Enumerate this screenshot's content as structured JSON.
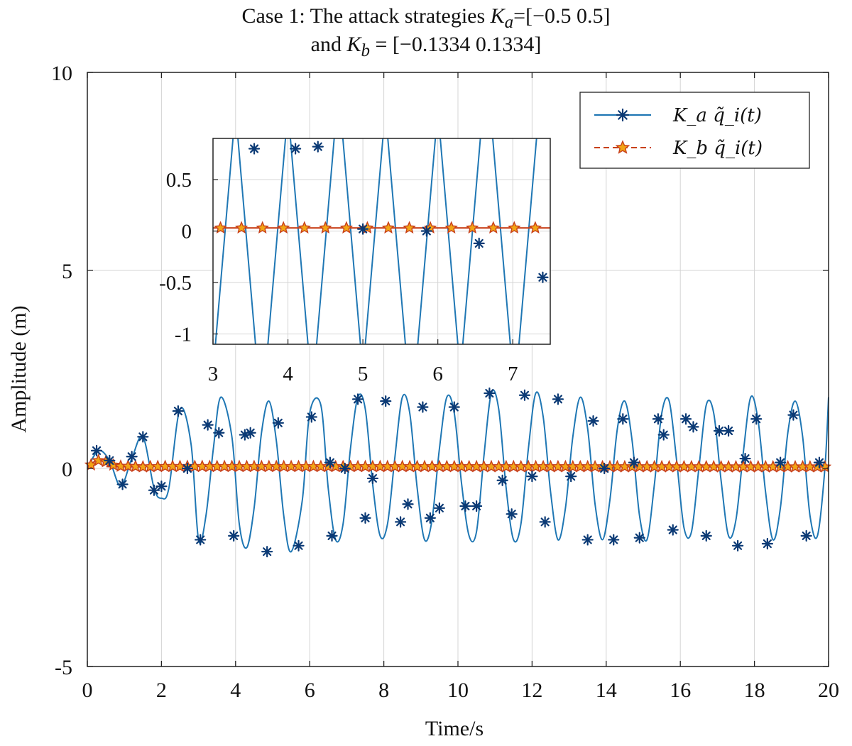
{
  "chart_data": {
    "type": "line",
    "title": {
      "line1_prefix": "Case 1: The attack strategies ",
      "ka_symbol": "K",
      "ka_sub": "a",
      "ka_value": "=[−0.5 0.5]",
      "line2_prefix": "and ",
      "kb_symbol": "K",
      "kb_sub": "b",
      "kb_value": " = [−0.1334 0.1334]"
    },
    "xlabel": "Time/s",
    "ylabel": "Amplitude (m)",
    "xlim": [
      0,
      20
    ],
    "ylim": [
      -5,
      10
    ],
    "xticks": [
      "0",
      "2",
      "4",
      "6",
      "8",
      "10",
      "12",
      "14",
      "16",
      "18",
      "20"
    ],
    "yticks": [
      "-5",
      "0",
      "5",
      "10"
    ],
    "grid": true,
    "legend_position": "top-right",
    "colors": {
      "ka": "#1f77b4",
      "ka_marker": "#0b3a75",
      "kb": "#c8401a",
      "kb_marker": "#f2a516"
    },
    "series": [
      {
        "name": "K_a q~_i(t)",
        "legend_label": "K_a q̃_i(t)",
        "marker": "asterisk",
        "samples": [
          [
            0.0,
            0.0
          ],
          [
            0.3,
            0.45
          ],
          [
            0.6,
            0.2
          ],
          [
            0.9,
            -0.45
          ],
          [
            1.2,
            0.25
          ],
          [
            1.5,
            0.8
          ],
          [
            1.8,
            -0.5
          ],
          [
            2.0,
            -0.75
          ],
          [
            2.2,
            -0.5
          ],
          [
            2.5,
            1.5
          ],
          [
            2.8,
            0.6
          ],
          [
            3.0,
            -1.8
          ],
          [
            3.2,
            -1.2
          ],
          [
            3.4,
            0.5
          ],
          [
            3.6,
            1.8
          ],
          [
            3.9,
            0.8
          ],
          [
            4.1,
            -1.4
          ],
          [
            4.3,
            -2.0
          ],
          [
            4.5,
            -1.0
          ],
          [
            4.7,
            0.9
          ],
          [
            4.9,
            1.7
          ],
          [
            5.1,
            0.7
          ],
          [
            5.3,
            -1.2
          ],
          [
            5.5,
            -2.1
          ],
          [
            5.8,
            -0.8
          ],
          [
            6.0,
            1.4
          ],
          [
            6.3,
            1.6
          ],
          [
            6.5,
            -0.5
          ],
          [
            6.7,
            -1.8
          ],
          [
            6.9,
            -1.4
          ],
          [
            7.1,
            0.5
          ],
          [
            7.3,
            1.8
          ],
          [
            7.5,
            1.5
          ],
          [
            7.7,
            -0.4
          ],
          [
            7.9,
            -1.7
          ],
          [
            8.1,
            -1.4
          ],
          [
            8.3,
            0.3
          ],
          [
            8.5,
            1.8
          ],
          [
            8.7,
            1.4
          ],
          [
            8.9,
            -0.5
          ],
          [
            9.1,
            -1.8
          ],
          [
            9.3,
            -1.3
          ],
          [
            9.5,
            0.5
          ],
          [
            9.7,
            1.8
          ],
          [
            9.9,
            1.4
          ],
          [
            10.1,
            -0.4
          ],
          [
            10.3,
            -1.7
          ],
          [
            10.5,
            -1.6
          ],
          [
            10.7,
            0.3
          ],
          [
            10.9,
            1.9
          ],
          [
            11.1,
            1.5
          ],
          [
            11.3,
            -0.5
          ],
          [
            11.5,
            -1.8
          ],
          [
            11.7,
            -1.4
          ],
          [
            11.9,
            0.5
          ],
          [
            12.1,
            1.9
          ],
          [
            12.3,
            1.3
          ],
          [
            12.5,
            -0.6
          ],
          [
            12.7,
            -1.8
          ],
          [
            12.9,
            -1.0
          ],
          [
            13.1,
            0.8
          ],
          [
            13.3,
            1.8
          ],
          [
            13.5,
            1.0
          ],
          [
            13.7,
            -0.9
          ],
          [
            13.9,
            -1.8
          ],
          [
            14.1,
            -0.8
          ],
          [
            14.3,
            1.0
          ],
          [
            14.5,
            1.7
          ],
          [
            14.7,
            0.7
          ],
          [
            14.9,
            -1.2
          ],
          [
            15.1,
            -1.8
          ],
          [
            15.3,
            -0.4
          ],
          [
            15.5,
            1.4
          ],
          [
            15.7,
            1.7
          ],
          [
            15.9,
            0.2
          ],
          [
            16.1,
            -1.5
          ],
          [
            16.3,
            -1.6
          ],
          [
            16.5,
            0.0
          ],
          [
            16.7,
            1.6
          ],
          [
            16.9,
            1.4
          ],
          [
            17.1,
            -0.3
          ],
          [
            17.3,
            -1.7
          ],
          [
            17.5,
            -1.3
          ],
          [
            17.7,
            0.4
          ],
          [
            17.9,
            1.8
          ],
          [
            18.1,
            1.2
          ],
          [
            18.3,
            -0.6
          ],
          [
            18.5,
            -1.8
          ],
          [
            18.7,
            -1.0
          ],
          [
            18.9,
            0.9
          ],
          [
            19.1,
            1.7
          ],
          [
            19.3,
            0.8
          ],
          [
            19.5,
            -1.2
          ],
          [
            19.7,
            -1.7
          ],
          [
            19.9,
            0.0
          ],
          [
            20.0,
            1.8
          ]
        ],
        "markers": [
          [
            0.25,
            0.45
          ],
          [
            0.6,
            0.2
          ],
          [
            0.95,
            -0.4
          ],
          [
            1.2,
            0.3
          ],
          [
            1.5,
            0.8
          ],
          [
            1.8,
            -0.55
          ],
          [
            2.0,
            -0.45
          ],
          [
            2.45,
            1.45
          ],
          [
            2.7,
            0.0
          ],
          [
            3.05,
            -1.8
          ],
          [
            3.25,
            1.1
          ],
          [
            3.55,
            0.9
          ],
          [
            3.95,
            -1.7
          ],
          [
            4.25,
            0.85
          ],
          [
            4.4,
            0.9
          ],
          [
            4.85,
            -2.1
          ],
          [
            5.15,
            1.15
          ],
          [
            5.7,
            -1.95
          ],
          [
            6.05,
            1.3
          ],
          [
            6.55,
            0.15
          ],
          [
            6.6,
            -1.7
          ],
          [
            6.95,
            0.0
          ],
          [
            7.3,
            1.75
          ],
          [
            7.5,
            -1.25
          ],
          [
            7.7,
            -0.25
          ],
          [
            8.05,
            1.7
          ],
          [
            8.45,
            -1.35
          ],
          [
            8.65,
            -0.9
          ],
          [
            9.05,
            1.55
          ],
          [
            9.25,
            -1.25
          ],
          [
            9.5,
            -1.0
          ],
          [
            9.9,
            1.55
          ],
          [
            10.2,
            -0.95
          ],
          [
            10.5,
            -0.95
          ],
          [
            10.85,
            1.9
          ],
          [
            11.2,
            -0.3
          ],
          [
            11.45,
            -1.15
          ],
          [
            11.8,
            1.85
          ],
          [
            12.0,
            -0.2
          ],
          [
            12.35,
            -1.35
          ],
          [
            12.7,
            1.75
          ],
          [
            13.05,
            -0.2
          ],
          [
            13.5,
            -1.8
          ],
          [
            13.65,
            1.2
          ],
          [
            13.95,
            0.0
          ],
          [
            14.2,
            -1.8
          ],
          [
            14.45,
            1.25
          ],
          [
            14.75,
            0.15
          ],
          [
            14.9,
            -1.75
          ],
          [
            15.4,
            1.25
          ],
          [
            15.55,
            0.85
          ],
          [
            15.8,
            -1.55
          ],
          [
            16.15,
            1.25
          ],
          [
            16.35,
            1.05
          ],
          [
            16.7,
            -1.7
          ],
          [
            17.05,
            0.95
          ],
          [
            17.3,
            0.95
          ],
          [
            17.55,
            -1.95
          ],
          [
            17.75,
            0.25
          ],
          [
            18.05,
            1.25
          ],
          [
            18.35,
            -1.9
          ],
          [
            18.7,
            0.15
          ],
          [
            19.05,
            1.35
          ],
          [
            19.4,
            -1.7
          ],
          [
            19.75,
            0.15
          ]
        ]
      },
      {
        "name": "K_b q~_i(t)",
        "legend_label": "K_b q̃_i(t)",
        "marker": "pentagram",
        "samples": [
          [
            0.0,
            0.0
          ],
          [
            0.2,
            0.18
          ],
          [
            0.4,
            0.22
          ],
          [
            0.6,
            0.12
          ],
          [
            0.8,
            0.05
          ],
          [
            1.0,
            0.06
          ],
          [
            1.5,
            0.04
          ],
          [
            2.0,
            0.05
          ],
          [
            20.0,
            0.04
          ]
        ],
        "marker_spacing": 0.2
      }
    ],
    "inset": {
      "xlim": [
        3,
        7.5
      ],
      "ylim": [
        -1.1,
        0.9
      ],
      "xticks": [
        "3",
        "4",
        "5",
        "6",
        "7"
      ],
      "yticks": [
        "0.5",
        "0",
        "-0.5",
        "-1"
      ],
      "ka_zero_crossings": [
        3.15,
        3.45,
        3.85,
        4.15,
        4.5,
        4.85,
        5.15,
        5.45,
        5.85,
        6.15,
        6.45,
        6.85,
        7.2
      ],
      "ka_markers": [
        [
          3.55,
          0.8
        ],
        [
          4.1,
          0.8
        ],
        [
          4.4,
          0.82
        ],
        [
          5.0,
          0.02
        ],
        [
          5.85,
          0.0
        ],
        [
          6.55,
          -0.12
        ],
        [
          7.4,
          -0.45
        ]
      ],
      "kb_level": 0.03,
      "kb_marker_spacing": 0.28
    }
  }
}
